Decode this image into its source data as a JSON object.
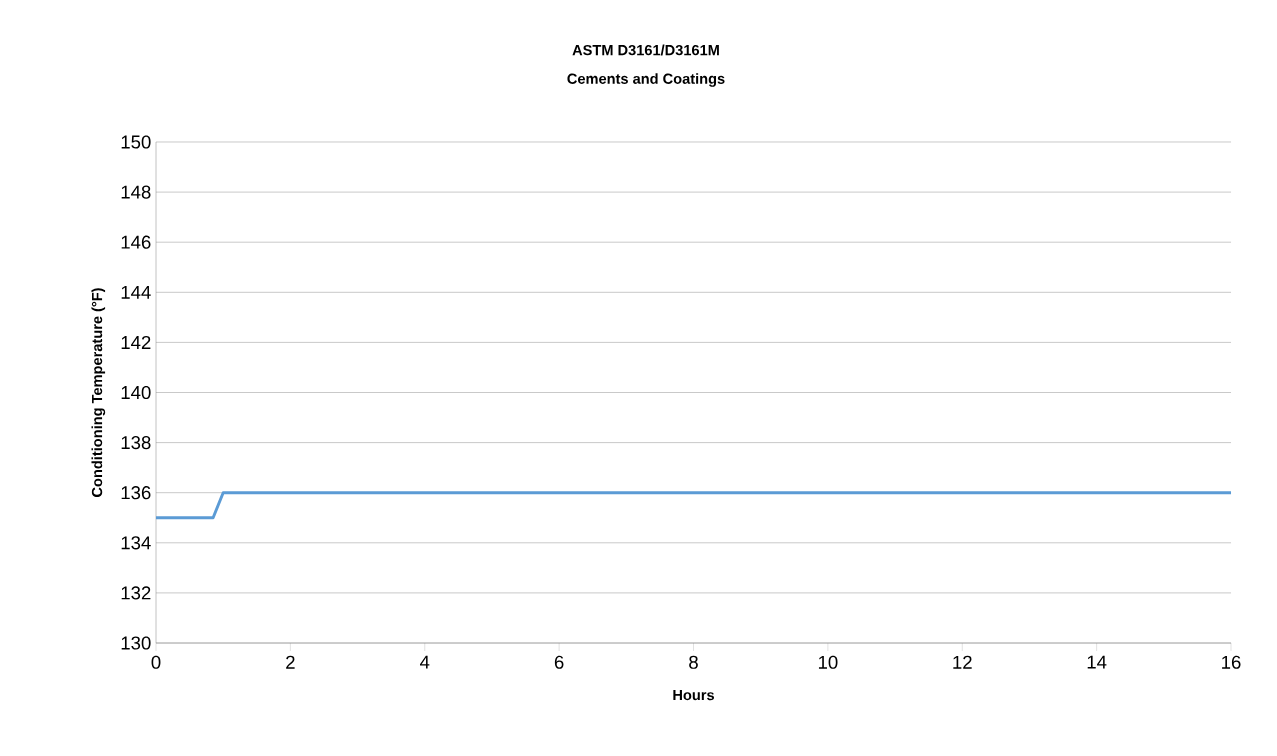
{
  "chart_data": {
    "type": "line",
    "title": "ASTM D3161/D3161M",
    "subtitle": "Cements and Coatings",
    "xlabel": "Hours",
    "ylabel": "Conditioning Temperature (°F)",
    "series": [
      {
        "color": "#5b9bd5",
        "x": [
          0,
          0.85,
          1.0,
          16
        ],
        "values": [
          135,
          135,
          136,
          136
        ]
      }
    ],
    "xlim": [
      0,
      16
    ],
    "ylim": [
      130,
      150
    ],
    "xticks": [
      0,
      2,
      4,
      6,
      8,
      10,
      12,
      14,
      16
    ],
    "yticks": [
      130,
      132,
      134,
      136,
      138,
      140,
      142,
      144,
      146,
      148,
      150
    ],
    "grid": "y",
    "marker": "none",
    "line_style": "solid"
  }
}
